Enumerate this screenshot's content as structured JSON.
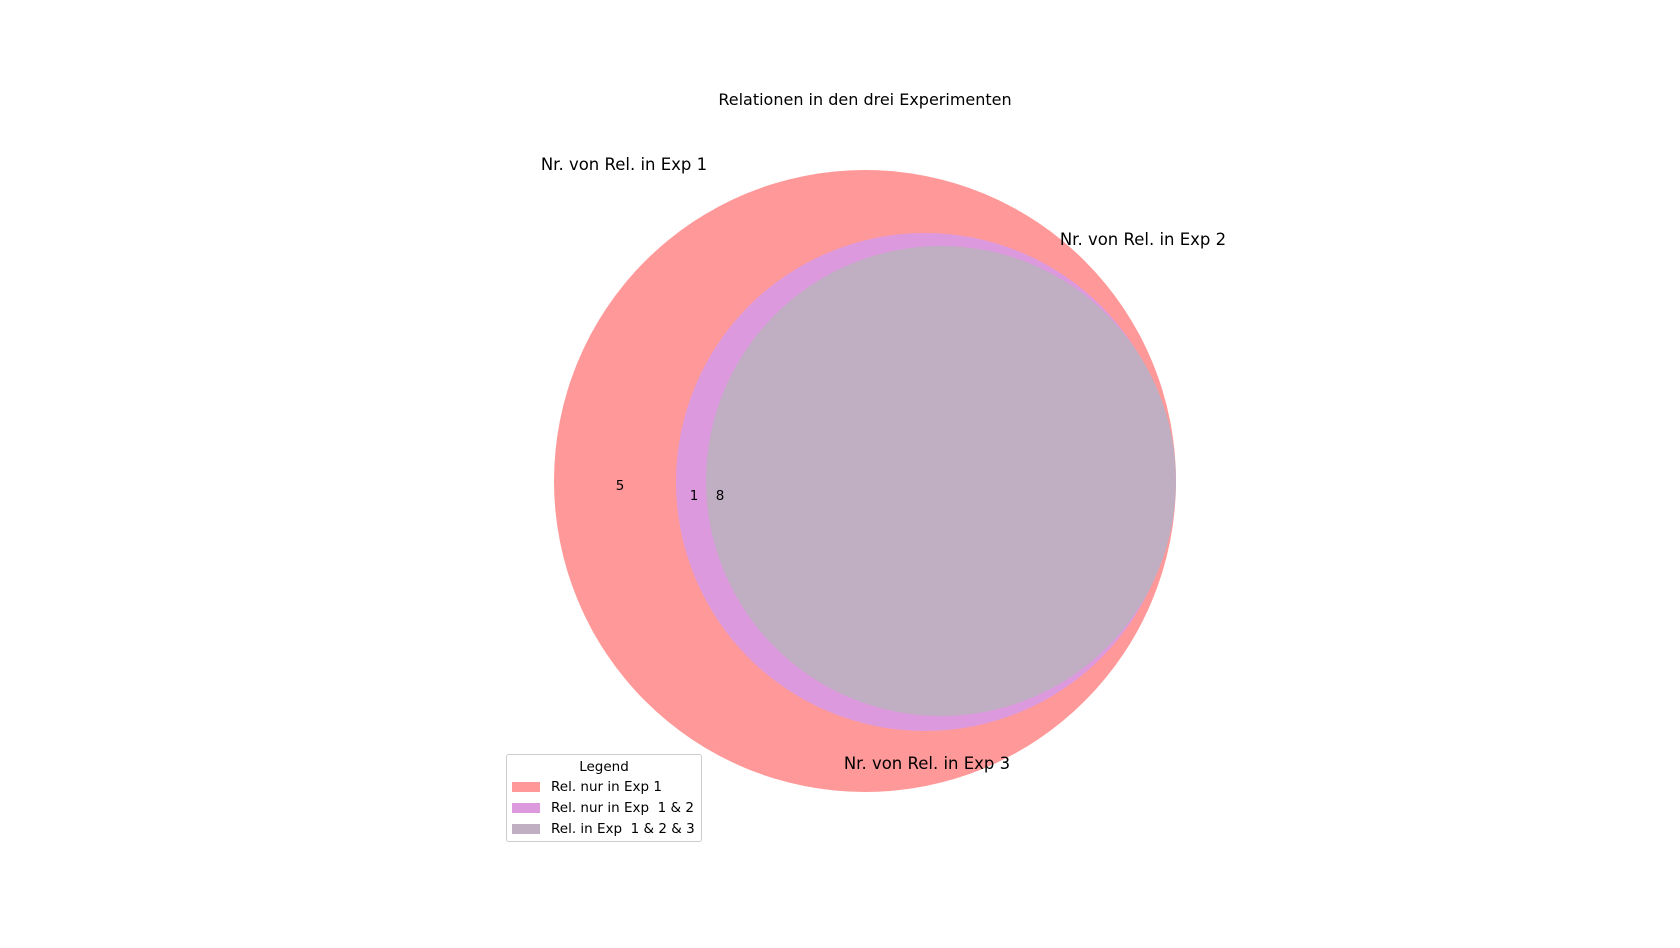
{
  "title": "Relationen in den drei Experimenten",
  "sets": [
    {
      "id": "exp1",
      "label": "Nr. von Rel. in Exp 1"
    },
    {
      "id": "exp2",
      "label": "Nr. von Rel. in Exp 2"
    },
    {
      "id": "exp3",
      "label": "Nr. von Rel. in Exp 3"
    }
  ],
  "regions": [
    {
      "id": "only_exp1",
      "count": "5",
      "color": "#ff9999"
    },
    {
      "id": "only_exp1_2",
      "count": "1",
      "color": "#dd99dd"
    },
    {
      "id": "all_three",
      "count": "8",
      "color": "#c0aec2"
    }
  ],
  "legend": {
    "title": "Legend",
    "items": [
      {
        "label": "Rel. nur in Exp 1",
        "color": "#ff9999"
      },
      {
        "label": "Rel. nur in Exp  1 & 2",
        "color": "#dd99dd"
      },
      {
        "label": "Rel. in Exp  1 & 2 & 3",
        "color": "#c0aec2"
      }
    ]
  }
}
